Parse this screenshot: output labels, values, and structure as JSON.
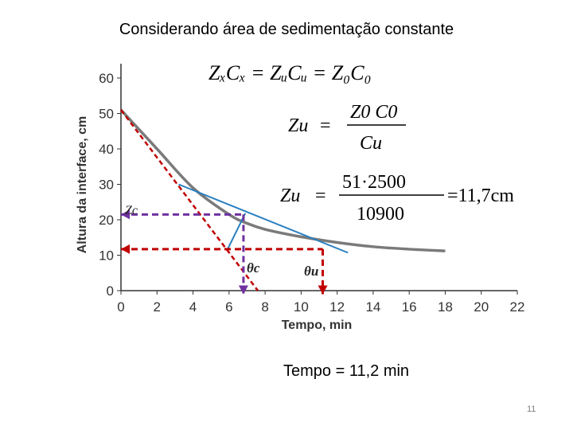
{
  "slide": {
    "title": "Considerando área  de sedimentação constante",
    "footer": "Tempo = 11,2 min",
    "page_number": "11"
  },
  "equations": {
    "eq1": "ZₓCₓ = ZᵤCᵤ = Z₀C₀",
    "eq2_lhs": "Zu",
    "eq2_num": "Z0 C0",
    "eq2_den": "Cu",
    "eq3_lhs": "Zu",
    "eq3_num": "51·2500",
    "eq3_den": "10900",
    "eq3_rhs": "=11,7cm"
  },
  "annotations": {
    "zc": "Zc",
    "theta_c": "θc",
    "theta_u": "θu"
  },
  "colors": {
    "curve": "#7a7a7a",
    "tangent": "#2a7fc0",
    "dashed_red": "#c00000",
    "dashed_purple": "#7030a0"
  },
  "chart_data": {
    "type": "line",
    "xlabel": "Tempo, min",
    "ylabel": "Altura da interface, cm",
    "xlim": [
      0,
      22
    ],
    "ylim": [
      0,
      60
    ],
    "xticks": [
      0,
      2,
      4,
      6,
      8,
      10,
      12,
      14,
      16,
      18,
      20,
      22
    ],
    "yticks": [
      0,
      10,
      20,
      30,
      40,
      50,
      60
    ],
    "grid": false,
    "series": [
      {
        "name": "",
        "style": "curve",
        "x": [
          0,
          2,
          4,
          6,
          7,
          8,
          10,
          12,
          14,
          16,
          18
        ],
        "y": [
          51,
          40,
          29,
          21.5,
          19,
          17.3,
          15.2,
          13.6,
          12.4,
          11.7,
          11.2
        ]
      },
      {
        "name": "",
        "style": "dashed_red_tangent",
        "x": [
          0,
          7.6
        ],
        "y": [
          51,
          0
        ]
      },
      {
        "name": "",
        "style": "blue_tangent",
        "x": [
          3.2,
          12.6
        ],
        "y": [
          30,
          10.7
        ]
      },
      {
        "name": "",
        "style": "blue_short",
        "x": [
          5.9,
          6.9
        ],
        "y": [
          11.5,
          21.8
        ]
      },
      {
        "name": "",
        "style": "purple_h_zc",
        "x": [
          0,
          6.8
        ],
        "y": [
          21.5,
          21.5
        ]
      },
      {
        "name": "",
        "style": "purple_v_thetac",
        "x": [
          6.8,
          6.8
        ],
        "y": [
          21.5,
          -1
        ]
      },
      {
        "name": "",
        "style": "red_h_zu",
        "x": [
          0,
          11.2
        ],
        "y": [
          11.7,
          11.7
        ]
      },
      {
        "name": "",
        "style": "red_v_thetau",
        "x": [
          11.2,
          11.2
        ],
        "y": [
          11.7,
          -1
        ]
      }
    ]
  }
}
